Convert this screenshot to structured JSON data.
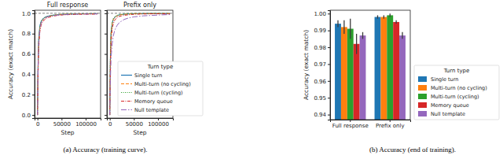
{
  "chart_data": [
    {
      "type": "line",
      "title": "Full response",
      "x_label": "Step",
      "y_label": "Accuracy (exact match)",
      "caption": "(a) Accuracy (training curve).",
      "x": [
        0,
        1000,
        2500,
        5000,
        7500,
        10000,
        15000,
        20000,
        30000,
        40000,
        50000,
        70000,
        90000,
        110000,
        125000
      ],
      "xlim": [
        -6000,
        131000
      ],
      "xticks": [
        0,
        50000,
        100000
      ],
      "ylim": [
        -0.03,
        1.03
      ],
      "yticks": [
        {
          "value": 0,
          "label": "0.0"
        },
        0.2,
        0.4,
        0.6,
        0.8,
        {
          "value": 1,
          "label": "1.0"
        }
      ],
      "hline": 1,
      "series": [
        {
          "name": "Single turn",
          "color": "#1f77b4",
          "line_style": "solid",
          "values": [
            0,
            0.45,
            0.75,
            0.88,
            0.92,
            0.94,
            0.96,
            0.97,
            0.98,
            0.985,
            0.99,
            0.993,
            0.995,
            0.996,
            0.997
          ]
        },
        {
          "name": "Multi-turn (no cycling)",
          "color": "#ff7f0e",
          "line_style": "dashed",
          "values": [
            0,
            0.4,
            0.72,
            0.86,
            0.91,
            0.93,
            0.955,
            0.965,
            0.978,
            0.985,
            0.99,
            0.993,
            0.995,
            0.996,
            0.997
          ]
        },
        {
          "name": "Multi-turn (cycling)",
          "color": "#2ca02c",
          "line_style": "dotted",
          "values": [
            0,
            0.42,
            0.74,
            0.87,
            0.915,
            0.94,
            0.96,
            0.97,
            0.98,
            0.986,
            0.99,
            0.993,
            0.995,
            0.996,
            0.997
          ]
        },
        {
          "name": "Memory queue",
          "color": "#d62728",
          "line_style": "dashdot",
          "values": [
            0,
            0.35,
            0.65,
            0.82,
            0.88,
            0.91,
            0.94,
            0.955,
            0.97,
            0.978,
            0.983,
            0.988,
            0.99,
            0.991,
            0.992
          ]
        },
        {
          "name": "Null template",
          "color": "#9467bd",
          "line_style": "longdashdot",
          "values": [
            0,
            0.4,
            0.7,
            0.85,
            0.9,
            0.93,
            0.95,
            0.965,
            0.975,
            0.982,
            0.986,
            0.99,
            0.992,
            0.993,
            0.994
          ]
        }
      ]
    },
    {
      "type": "line",
      "title": "Prefix only",
      "x_label": "Step",
      "tick_labels": "x",
      "legend": "lower right",
      "legend_title": "Turn type",
      "x": [
        0,
        1000,
        2500,
        5000,
        7500,
        10000,
        15000,
        20000,
        30000,
        40000,
        50000,
        70000,
        90000,
        110000,
        125000
      ],
      "xlim": [
        -6000,
        131000
      ],
      "xticks": [
        0,
        50000,
        100000
      ],
      "ylim": [
        -0.03,
        1.03
      ],
      "yticks": [
        0,
        0.2,
        0.4,
        0.6,
        0.8,
        1
      ],
      "hline": 1,
      "series": [
        {
          "name": "Single turn",
          "color": "#1f77b4",
          "line_style": "solid",
          "values": [
            0,
            0.5,
            0.8,
            0.9,
            0.94,
            0.96,
            0.975,
            0.985,
            0.99,
            0.994,
            0.996,
            0.997,
            0.998,
            0.998,
            0.998
          ]
        },
        {
          "name": "Multi-turn (no cycling)",
          "color": "#ff7f0e",
          "line_style": "dashed",
          "values": [
            0,
            0.48,
            0.79,
            0.9,
            0.94,
            0.96,
            0.975,
            0.984,
            0.99,
            0.994,
            0.996,
            0.997,
            0.998,
            0.998,
            0.998
          ]
        },
        {
          "name": "Multi-turn (cycling)",
          "color": "#2ca02c",
          "line_style": "dotted",
          "values": [
            0,
            0.52,
            0.82,
            0.92,
            0.95,
            0.965,
            0.98,
            0.988,
            0.993,
            0.996,
            0.997,
            0.998,
            0.999,
            0.999,
            0.999
          ]
        },
        {
          "name": "Memory queue",
          "color": "#d62728",
          "line_style": "dashdot",
          "values": [
            0,
            0.4,
            0.7,
            0.85,
            0.9,
            0.93,
            0.96,
            0.97,
            0.98,
            0.986,
            0.99,
            0.993,
            0.995,
            0.995,
            0.995
          ]
        },
        {
          "name": "Null template",
          "color": "#9467bd",
          "line_style": "longdashdot",
          "values": [
            0,
            0.3,
            0.55,
            0.7,
            0.78,
            0.83,
            0.88,
            0.91,
            0.94,
            0.955,
            0.965,
            0.975,
            0.98,
            0.985,
            0.987
          ]
        }
      ]
    },
    {
      "type": "bar",
      "y_label": "Accuracy (exact match)",
      "caption": "(b) Accuracy (end of training).",
      "legend": "right",
      "legend_title": "Turn type",
      "categories": [
        "Full response",
        "Prefix only"
      ],
      "ylim": [
        0.937,
        1.002
      ],
      "yticks": [
        0.94,
        0.95,
        0.96,
        0.97,
        0.98,
        0.99,
        {
          "value": 1,
          "label": "1.00"
        }
      ],
      "series": [
        {
          "name": "Single turn",
          "color": "#1f77b4",
          "values": [
            0.994,
            0.998
          ],
          "errors": [
            0.002,
            0.001
          ]
        },
        {
          "name": "Multi-turn (no cycling)",
          "color": "#ff7f0e",
          "values": [
            0.992,
            0.998
          ],
          "errors": [
            0.004,
            0.001
          ]
        },
        {
          "name": "Multi-turn (cycling)",
          "color": "#2ca02c",
          "values": [
            0.991,
            0.999
          ],
          "errors": [
            0.006,
            0.001
          ]
        },
        {
          "name": "Memory queue",
          "color": "#d62728",
          "values": [
            0.982,
            0.995
          ],
          "errors": [
            0.006,
            0.001
          ]
        },
        {
          "name": "Null template",
          "color": "#9467bd",
          "values": [
            0.987,
            0.987
          ],
          "errors": [
            0.002,
            0.002
          ]
        }
      ]
    }
  ]
}
